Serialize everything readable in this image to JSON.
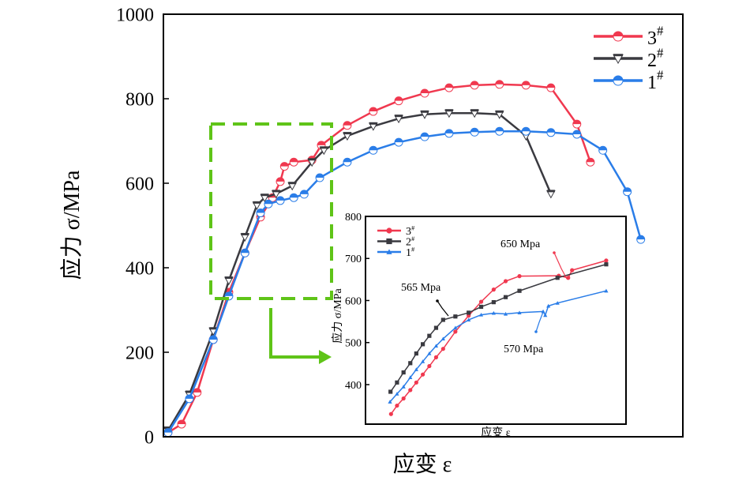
{
  "chart_data": [
    {
      "type": "line",
      "xlabel": "应变 ε",
      "ylabel": "应力 σ/MPa",
      "ylim": [
        0,
        1000
      ],
      "xlim": [
        0,
        100
      ],
      "yticks": [
        "0",
        "200",
        "400",
        "600",
        "800",
        "1000"
      ],
      "legend_position": "top-right",
      "grid": false,
      "series": [
        {
          "name": "3",
          "sup": "#",
          "color": "#f0384f",
          "marker": "half-circle",
          "x": [
            0.9,
            3.5,
            6.5,
            9.6,
            12.6,
            15.7,
            18.7,
            21,
            22.5,
            23.3,
            25.1,
            28.6,
            30.4,
            35.4,
            40.4,
            45.3,
            50.3,
            55,
            59.9,
            64.7,
            69.8,
            74.6,
            79.6,
            82.2
          ],
          "y": [
            10,
            30,
            105,
            230,
            342,
            435,
            520,
            566,
            604,
            640,
            650,
            655,
            690,
            737,
            770,
            795,
            813,
            826,
            832,
            834,
            832,
            826,
            740,
            650
          ]
        },
        {
          "name": "2",
          "sup": "#",
          "color": "#3a3a40",
          "marker": "triangle-down",
          "x": [
            0.9,
            5,
            9.6,
            12.6,
            15.7,
            18,
            19.5,
            21.7,
            24.8,
            28.6,
            30.9,
            35.4,
            40.4,
            45.3,
            50.3,
            55,
            59.9,
            64.7,
            69.8,
            74.6
          ],
          "y": [
            15,
            100,
            250,
            370,
            473,
            548,
            566,
            575,
            594,
            650,
            678,
            712,
            735,
            753,
            763,
            766,
            766,
            763,
            712,
            575
          ]
        },
        {
          "name": "1",
          "sup": "#",
          "color": "#2a7de8",
          "marker": "half-circle",
          "x": [
            0.9,
            5,
            9.6,
            12.6,
            15.7,
            18.7,
            20.2,
            22.5,
            25.1,
            27.1,
            30.1,
            35.4,
            40.4,
            45.3,
            50.3,
            55,
            59.9,
            64.7,
            69.8,
            74.6,
            79.6,
            84.6,
            89.3,
            91.9
          ],
          "y": [
            10,
            90,
            230,
            333,
            435,
            530,
            551,
            559,
            566,
            574,
            613,
            650,
            678,
            697,
            710,
            718,
            721,
            723,
            723,
            720,
            716,
            678,
            580,
            467
          ]
        }
      ]
    },
    {
      "type": "line",
      "xlabel": "应变 ε",
      "ylabel": "应力 σ/MPa",
      "ylim": [
        306,
        800
      ],
      "xlim": [
        0,
        100
      ],
      "yticks": [
        "400",
        "500",
        "600",
        "700",
        "800"
      ],
      "legend_position": "top-left",
      "grid": false,
      "annotations": [
        "650 Mpa",
        "565 Mpa",
        "570 Mpa"
      ],
      "series": [
        {
          "name": "3",
          "sup": "#",
          "color": "#f0384f",
          "marker": "circle",
          "x": [
            9.8,
            12.1,
            14.6,
            17.2,
            19.5,
            22,
            24.5,
            27.1,
            29.8,
            34.5,
            39.6,
            44.4,
            49.2,
            53.8,
            59.1,
            74.2,
            77.8,
            79.3,
            92.4
          ],
          "y": [
            330,
            350,
            367,
            387,
            405,
            424,
            444,
            465,
            485,
            526,
            564,
            597,
            626,
            646,
            658,
            659,
            654,
            672,
            695
          ]
        },
        {
          "name": "2",
          "sup": "#",
          "color": "#3a3a40",
          "marker": "square",
          "x": [
            9.6,
            12.1,
            14.6,
            17.2,
            19.5,
            22,
            24.5,
            27.1,
            29.8,
            34.5,
            39.6,
            44.4,
            49.2,
            53.8,
            59.1,
            73.7,
            92.4
          ],
          "y": [
            383,
            405,
            429,
            451,
            474,
            496,
            516,
            535,
            554,
            562,
            571,
            585,
            596,
            608,
            623,
            654,
            686
          ]
        },
        {
          "name": "1",
          "sup": "#",
          "color": "#2a7de8",
          "marker": "triangle-up",
          "x": [
            9.4,
            12.1,
            14.6,
            17.2,
            19.5,
            22,
            24.5,
            27.1,
            29.8,
            34.5,
            39.6,
            44.4,
            49.2,
            53.8,
            59.1,
            68.2,
            69,
            70.2,
            73.7,
            92.4
          ],
          "y": [
            359,
            378,
            395,
            417,
            436,
            455,
            474,
            492,
            509,
            535,
            554,
            566,
            570,
            568,
            571,
            574,
            565,
            587,
            594,
            623
          ]
        }
      ]
    }
  ],
  "colors": {
    "highlight_box": "#5fc418"
  }
}
